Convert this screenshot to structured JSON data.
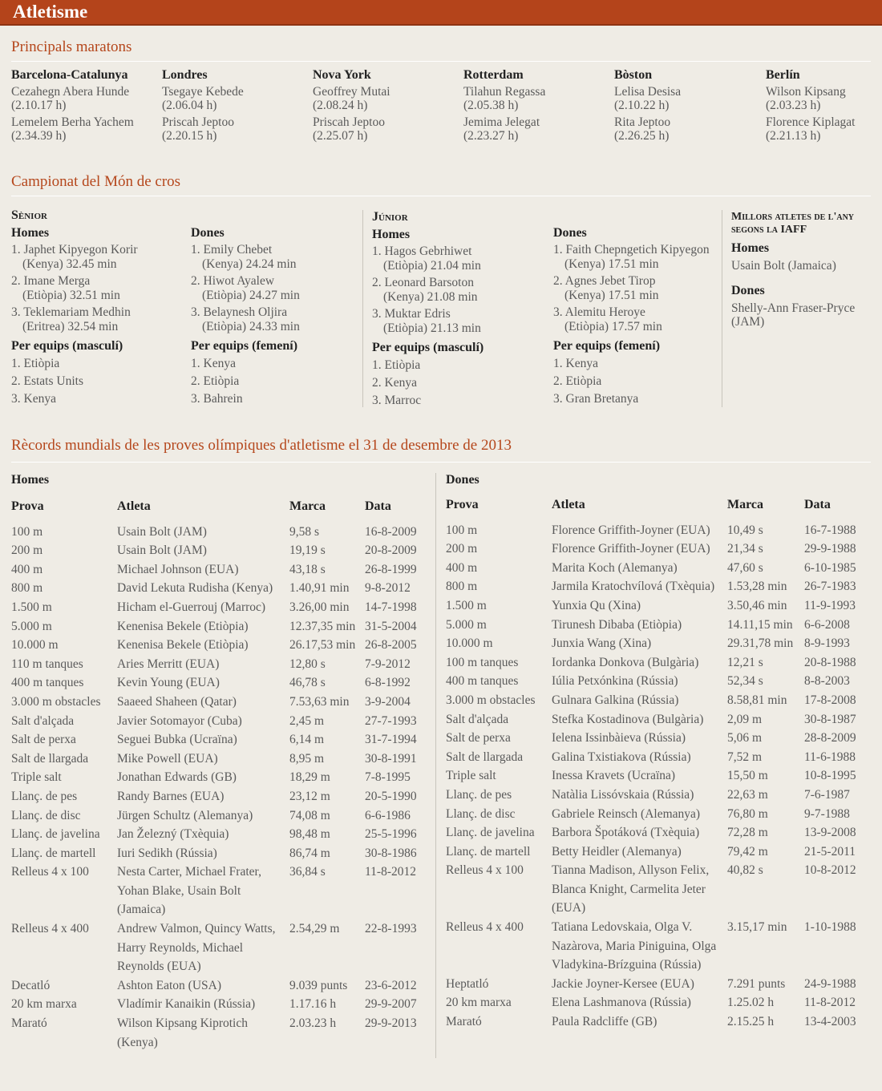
{
  "header": {
    "title": "Atletisme"
  },
  "marathons": {
    "title": "Principals maratons",
    "cities": [
      {
        "city": "Barcelona-Catalunya",
        "men": "Cezahegn Abera Hunde",
        "men_time": "(2.10.17 h)",
        "women": "Lemelem Berha Yachem",
        "women_time": "(2.34.39 h)"
      },
      {
        "city": "Londres",
        "men": "Tsegaye Kebede",
        "men_time": "(2.06.04 h)",
        "women": "Priscah Jeptoo",
        "women_time": "(2.20.15 h)"
      },
      {
        "city": "Nova York",
        "men": "Geoffrey Mutai",
        "men_time": "(2.08.24 h)",
        "women": "Priscah Jeptoo",
        "women_time": "(2.25.07 h)"
      },
      {
        "city": "Rotterdam",
        "men": "Tilahun Regassa",
        "men_time": "(2.05.38 h)",
        "women": "Jemima Jelegat",
        "women_time": "(2.23.27 h)"
      },
      {
        "city": "Bòston",
        "men": "Lelisa Desisa",
        "men_time": "(2.10.22 h)",
        "women": "Rita Jeptoo",
        "women_time": "(2.26.25 h)"
      },
      {
        "city": "Berlín",
        "men": "Wilson Kipsang",
        "men_time": "(2.03.23 h)",
        "women": "Florence Kiplagat",
        "women_time": "(2.21.13 h)"
      }
    ]
  },
  "cross": {
    "title": "Campionat del Món de cros",
    "senior": {
      "label": "Sènior",
      "men": {
        "label": "Homes",
        "items": [
          [
            "1. Japhet Kipyegon Korir",
            "(Kenya) 32.45 min"
          ],
          [
            "2. Imane Merga",
            "(Etiòpia) 32.51 min"
          ],
          [
            "3. Teklemariam Medhin",
            "(Eritrea) 32.54 min"
          ]
        ],
        "team_label": "Per equips (masculí)",
        "team": [
          "1. Etiòpia",
          "2. Estats Units",
          "3. Kenya"
        ]
      },
      "women": {
        "label": "Dones",
        "items": [
          [
            "1. Emily Chebet",
            "(Kenya) 24.24 min"
          ],
          [
            "2. Hiwot Ayalew",
            "(Etiòpia) 24.27 min"
          ],
          [
            "3. Belaynesh Oljira",
            "(Etiòpia) 24.33 min"
          ]
        ],
        "team_label": "Per equips (femení)",
        "team": [
          "1. Kenya",
          "2. Etiòpia",
          "3. Bahrein"
        ]
      }
    },
    "junior": {
      "label": "Júnior",
      "men": {
        "label": "Homes",
        "items": [
          [
            "1. Hagos Gebrhiwet",
            "(Etiòpia) 21.04 min"
          ],
          [
            "2. Leonard Barsoton",
            "(Kenya) 21.08 min"
          ],
          [
            "3. Muktar Edris",
            "(Etiòpia) 21.13 min"
          ]
        ],
        "team_label": "Per equips (masculí)",
        "team": [
          "1. Etiòpia",
          "2. Kenya",
          "3. Marroc"
        ]
      },
      "women": {
        "label": "Dones",
        "items": [
          [
            "1. Faith Chepngetich Kipyegon",
            "(Kenya) 17.51 min"
          ],
          [
            "2. Agnes Jebet Tirop",
            "(Kenya) 17.51 min"
          ],
          [
            "3. Alemitu Heroye",
            "(Etiòpia) 17.57 min"
          ]
        ],
        "team_label": "Per equips (femení)",
        "team": [
          "1. Kenya",
          "2. Etiòpia",
          "3. Gran Bretanya"
        ]
      }
    },
    "best": {
      "title": "Millors atletes de l'any segons la IAFF",
      "men_label": "Homes",
      "men": "Usain Bolt (Jamaica)",
      "women_label": "Dones",
      "women": "Shelly-Ann Fraser-Pryce (JAM)"
    }
  },
  "records": {
    "title": "Rècords mundials de les proves olímpiques d'atletisme el 31 de desembre de 2013",
    "columns": [
      "Prova",
      "Atleta",
      "Marca",
      "Data"
    ],
    "men": {
      "label": "Homes",
      "rows": [
        [
          "100 m",
          "Usain Bolt (JAM)",
          "9,58 s",
          "16-8-2009"
        ],
        [
          "200 m",
          "Usain Bolt (JAM)",
          "19,19 s",
          "20-8-2009"
        ],
        [
          "400 m",
          "Michael Johnson (EUA)",
          "43,18 s",
          "26-8-1999"
        ],
        [
          "800 m",
          "David Lekuta Rudisha (Kenya)",
          "1.40,91 min",
          "9-8-2012"
        ],
        [
          "1.500 m",
          "Hicham el-Guerrouj (Marroc)",
          "3.26,00 min",
          "14-7-1998"
        ],
        [
          "5.000 m",
          "Kenenisa Bekele (Etiòpia)",
          "12.37,35 min",
          "31-5-2004"
        ],
        [
          "10.000 m",
          "Kenenisa Bekele (Etiòpia)",
          "26.17,53 min",
          "26-8-2005"
        ],
        [
          "110 m tanques",
          "Aries Merritt (EUA)",
          "12,80 s",
          "7-9-2012"
        ],
        [
          "400 m tanques",
          "Kevin Young (EUA)",
          "46,78 s",
          "6-8-1992"
        ],
        [
          "3.000 m obstacles",
          "Saaeed Shaheen (Qatar)",
          "7.53,63 min",
          "3-9-2004"
        ],
        [
          "Salt d'alçada",
          "Javier Sotomayor (Cuba)",
          "2,45 m",
          "27-7-1993"
        ],
        [
          "Salt de perxa",
          "Seguei Bubka (Ucraïna)",
          "6,14 m",
          "31-7-1994"
        ],
        [
          "Salt de llargada",
          "Mike Powell (EUA)",
          "8,95 m",
          "30-8-1991"
        ],
        [
          "Triple salt",
          "Jonathan Edwards (GB)",
          "18,29 m",
          "7-8-1995"
        ],
        [
          "Llanç. de pes",
          "Randy Barnes (EUA)",
          "23,12 m",
          "20-5-1990"
        ],
        [
          "Llanç. de disc",
          "Jürgen Schultz (Alemanya)",
          "74,08 m",
          "6-6-1986"
        ],
        [
          "Llanç. de javelina",
          "Jan Železný (Txèquia)",
          "98,48 m",
          "25-5-1996"
        ],
        [
          "Llanç. de martell",
          "Iuri Sedikh (Rússia)",
          "86,74 m",
          "30-8-1986"
        ],
        [
          "Relleus 4 x 100",
          "Nesta Carter, Michael Frater, Yohan Blake, Usain Bolt (Jamaica)",
          "36,84 s",
          "11-8-2012"
        ],
        [
          "Relleus 4 x 400",
          "Andrew Valmon, Quincy Watts, Harry Reynolds, Michael Reynolds (EUA)",
          "2.54,29 m",
          "22-8-1993"
        ],
        [
          "Decatló",
          "Ashton Eaton (USA)",
          "9.039 punts",
          "23-6-2012"
        ],
        [
          "20 km marxa",
          "Vladímir Kanaikin (Rússia)",
          "1.17.16 h",
          "29-9-2007"
        ],
        [
          "Marató",
          "Wilson Kipsang Kiprotich (Kenya)",
          "2.03.23 h",
          "29-9-2013"
        ]
      ]
    },
    "women": {
      "label": "Dones",
      "rows": [
        [
          "100 m",
          "Florence Griffith-Joyner (EUA)",
          "10,49 s",
          "16-7-1988"
        ],
        [
          "200 m",
          "Florence Griffith-Joyner (EUA)",
          "21,34 s",
          "29-9-1988"
        ],
        [
          "400 m",
          "Marita Koch (Alemanya)",
          "47,60 s",
          "6-10-1985"
        ],
        [
          "800 m",
          "Jarmila Kratochvílová (Txèquia)",
          "1.53,28 min",
          "26-7-1983"
        ],
        [
          "1.500 m",
          "Yunxia Qu (Xina)",
          "3.50,46 min",
          "11-9-1993"
        ],
        [
          "5.000 m",
          "Tirunesh Dibaba (Etiòpia)",
          "14.11,15 min",
          "6-6-2008"
        ],
        [
          "10.000 m",
          "Junxia Wang (Xina)",
          "29.31,78 min",
          "8-9-1993"
        ],
        [
          "100 m tanques",
          "Iordanka Donkova (Bulgària)",
          "12,21 s",
          "20-8-1988"
        ],
        [
          "400 m tanques",
          "Iúlia Petxónkina (Rússia)",
          "52,34 s",
          "8-8-2003"
        ],
        [
          "3.000 m obstacles",
          "Gulnara Galkina (Rússia)",
          "8.58,81 min",
          "17-8-2008"
        ],
        [
          "Salt d'alçada",
          "Stefka Kostadinova (Bulgària)",
          "2,09 m",
          "30-8-1987"
        ],
        [
          "Salt de perxa",
          "Ielena Issinbàieva (Rússia)",
          "5,06 m",
          "28-8-2009"
        ],
        [
          "Salt de llargada",
          "Galina Txistiakova (Rússia)",
          "7,52 m",
          "11-6-1988"
        ],
        [
          "Triple salt",
          "Inessa Kravets (Ucraïna)",
          "15,50 m",
          "10-8-1995"
        ],
        [
          "Llanç. de pes",
          "Natàlia Lissóvskaia (Rússia)",
          "22,63 m",
          "7-6-1987"
        ],
        [
          "Llanç. de disc",
          "Gabriele Reinsch (Alemanya)",
          "76,80 m",
          "9-7-1988"
        ],
        [
          "Llanç. de javelina",
          "Barbora Špotáková (Txèquia)",
          "72,28 m",
          "13-9-2008"
        ],
        [
          "Llanç. de martell",
          "Betty Heidler (Alemanya)",
          "79,42 m",
          "21-5-2011"
        ],
        [
          "Relleus 4 x 100",
          "Tianna Madison, Allyson Felix, Blanca Knight, Carmelita Jeter (EUA)",
          "40,82 s",
          "10-8-2012"
        ],
        [
          "Relleus 4 x 400",
          "Tatiana Ledovskaia, Olga V. Nazàrova, Maria Piniguina, Olga Vladykina-Brízguina (Rússia)",
          "3.15,17 min",
          "1-10-1988"
        ],
        [
          "Heptatló",
          "Jackie Joyner-Kersee (EUA)",
          "7.291 punts",
          "24-9-1988"
        ],
        [
          "20 km marxa",
          "Elena Lashmanova (Rússia)",
          "1.25.02 h",
          "11-8-2012"
        ],
        [
          "Marató",
          "Paula Radcliffe (GB)",
          "2.15.25 h",
          "13-4-2003"
        ]
      ]
    }
  }
}
